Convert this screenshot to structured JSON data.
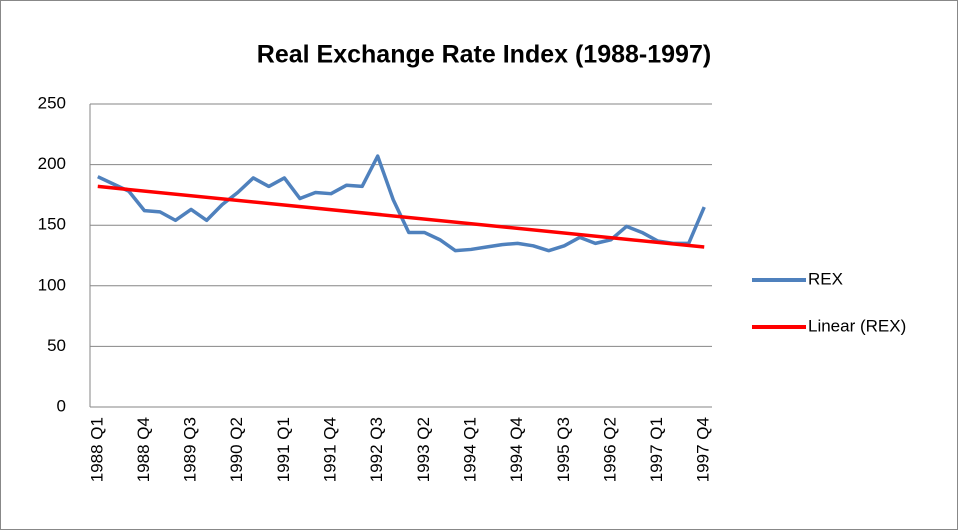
{
  "chart_data": {
    "type": "line",
    "title": "Real Exchange Rate Index (1988-1997)",
    "categories": [
      "1988 Q1",
      null,
      null,
      "1988 Q4",
      null,
      null,
      "1989 Q3",
      null,
      null,
      "1990 Q2",
      null,
      null,
      "1991 Q1",
      null,
      null,
      "1991 Q4",
      null,
      null,
      "1992 Q3",
      null,
      null,
      "1993 Q2",
      null,
      null,
      "1994 Q1",
      null,
      null,
      "1994 Q4",
      null,
      null,
      "1995 Q3",
      null,
      null,
      "1996 Q2",
      null,
      null,
      "1997 Q1",
      null,
      null,
      "1997 Q4"
    ],
    "series": [
      {
        "name": "REX",
        "color": "#4f81bd",
        "values": [
          190,
          184,
          178,
          162,
          161,
          154,
          163,
          154,
          167,
          177,
          189,
          182,
          189,
          172,
          177,
          176,
          183,
          182,
          207,
          171,
          144,
          144,
          138,
          129,
          130,
          132,
          134,
          135,
          133,
          129,
          133,
          140,
          135,
          138,
          149,
          144,
          137,
          135,
          135,
          165
        ]
      }
    ],
    "trendline": {
      "name": "Linear (REX)",
      "color": "#ff0000",
      "values": [
        182,
        132
      ]
    },
    "ylim": [
      0,
      250
    ],
    "yticks": [
      0,
      50,
      100,
      150,
      200,
      250
    ],
    "grid": true,
    "legend": "right"
  }
}
